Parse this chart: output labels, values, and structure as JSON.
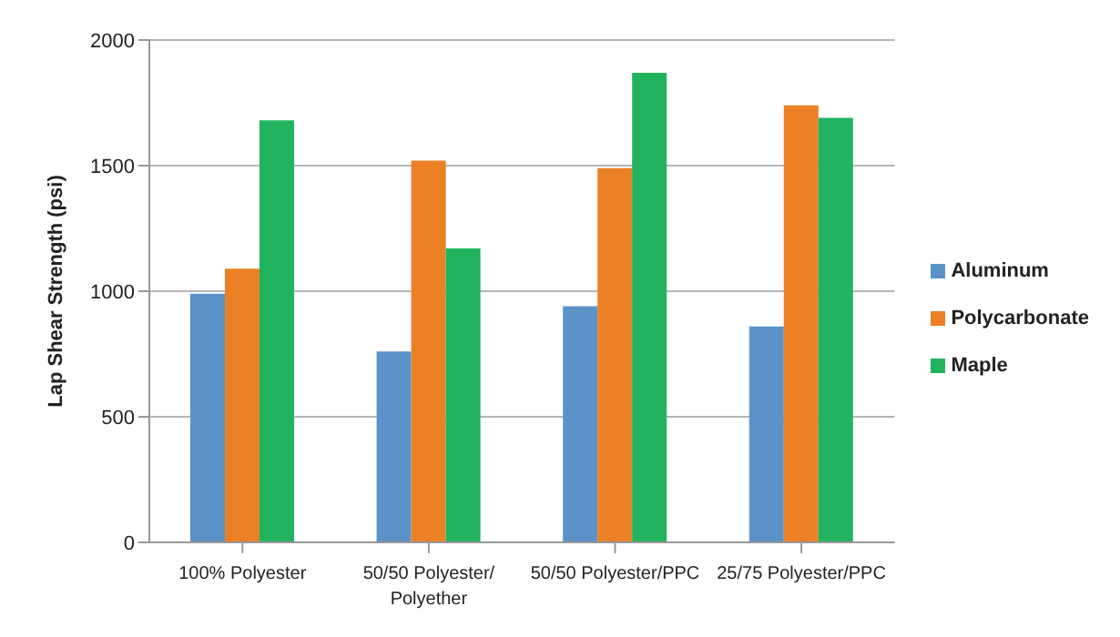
{
  "chart_data": {
    "type": "bar",
    "ylabel": "Lap Shear Strength (psi)",
    "categories": [
      "100% Polyester",
      "50/50 Polyester/Polyether",
      "50/50 Polyester/PPC",
      "25/75 Polyester/PPC"
    ],
    "series": [
      {
        "name": "Aluminum",
        "color": "#5b93c8",
        "values": [
          990,
          760,
          940,
          860
        ]
      },
      {
        "name": "Polycarbonate",
        "color": "#ec8025",
        "values": [
          1090,
          1520,
          1490,
          1740
        ]
      },
      {
        "name": "Maple",
        "color": "#22b35f",
        "values": [
          1680,
          1170,
          1870,
          1690
        ]
      }
    ],
    "ylim": [
      0,
      2000
    ],
    "yticks": [
      0,
      500,
      1000,
      1500,
      2000
    ],
    "grid": "y",
    "legend": "right"
  }
}
